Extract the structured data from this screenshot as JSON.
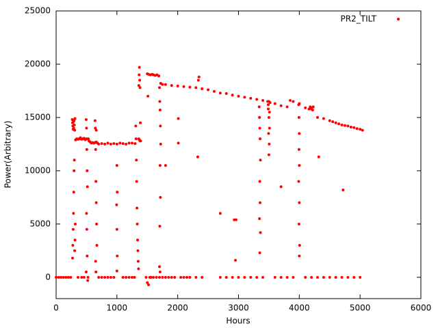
{
  "chart_data": {
    "type": "scatter",
    "xlabel": "Hours",
    "ylabel": "Power(Arbitrary)",
    "xlim": [
      0,
      6000
    ],
    "xticks": [
      0,
      1000,
      2000,
      3000,
      4000,
      5000,
      6000
    ],
    "ylim": [
      -2000,
      25000
    ],
    "yticks": [
      0,
      5000,
      10000,
      15000,
      20000,
      25000
    ],
    "legend": "top right",
    "x": [
      0,
      40,
      80,
      120,
      160,
      200,
      240,
      360,
      420,
      460,
      265,
      270,
      275,
      280,
      285,
      290,
      295,
      300,
      305,
      310,
      270,
      275,
      280,
      285,
      290,
      295,
      300,
      305,
      310,
      315,
      320,
      340,
      360,
      380,
      400,
      420,
      440,
      460,
      480,
      500,
      495,
      500,
      505,
      510,
      515,
      500,
      505,
      510,
      495,
      520,
      525,
      530,
      540,
      560,
      580,
      600,
      620,
      640,
      660,
      680,
      640,
      645,
      650,
      655,
      660,
      665,
      670,
      650,
      655,
      660,
      700,
      750,
      800,
      850,
      900,
      950,
      1000,
      1050,
      1100,
      1150,
      1000,
      1005,
      995,
      1000,
      1005,
      1000,
      700,
      750,
      800,
      850,
      900,
      950,
      1100,
      1150,
      1200,
      1250,
      1200,
      1250,
      1300,
      1290,
      1310,
      1315,
      1320,
      1325,
      1330,
      1335,
      1340,
      1345,
      1350,
      1355,
      1360,
      1365,
      1370,
      1375,
      1380,
      1385,
      1390,
      1360,
      1370,
      1380,
      1500,
      1520,
      1550,
      1580,
      1600,
      1630,
      1660,
      1690,
      1720,
      1750,
      1480,
      1500,
      1520,
      1540,
      1560,
      1600,
      1650,
      1700,
      1750,
      1510,
      1700,
      1705,
      1710,
      1715,
      1720,
      1710,
      1715,
      1705,
      1700,
      1710,
      1800,
      1900,
      2000,
      2100,
      2200,
      2300,
      2400,
      2500,
      2600,
      2700,
      2800,
      2900,
      3000,
      3100,
      3200,
      3300,
      3400,
      3500,
      3600,
      3700,
      3800,
      3850,
      3900,
      4000,
      4100,
      4200,
      4300,
      4400,
      4500,
      4600,
      4700,
      4800,
      4900,
      5000,
      5040,
      4650,
      4750,
      4850,
      4950,
      4550,
      3340,
      3345,
      3350,
      3355,
      3360,
      3350,
      3355,
      3345,
      3360,
      3350,
      3480,
      3490,
      3500,
      3510,
      3495,
      3505,
      3500,
      3490,
      3510,
      3520,
      3990,
      3995,
      4000,
      3995,
      4000,
      3990,
      4000,
      3995,
      4005,
      4000,
      1800,
      1850,
      1900,
      1950,
      2050,
      2100,
      2150,
      2200,
      2300,
      2400,
      2700,
      2800,
      2900,
      3000,
      3100,
      3200,
      3300,
      3400,
      3600,
      3700,
      3800,
      3900,
      4100,
      4200,
      4300,
      4400,
      4500,
      4600,
      4700,
      4800,
      4900,
      5000,
      2350,
      2340,
      2930,
      2960,
      2950,
      2010,
      2700,
      4720,
      3700,
      4320,
      4230,
      1800,
      2330,
      2010,
      4160,
      4180,
      4200,
      4220
    ],
    "series": [
      {
        "name": "PR2_TILT",
        "color": "#ff0000",
        "values": [
          0,
          0,
          0,
          0,
          0,
          0,
          0,
          0,
          0,
          0,
          14800,
          14500,
          14200,
          13900,
          14600,
          14000,
          14700,
          14300,
          13800,
          14900,
          1800,
          3000,
          4500,
          6000,
          8000,
          10000,
          11000,
          2500,
          3500,
          5000,
          12900,
          13000,
          12950,
          13000,
          13100,
          12950,
          13000,
          13050,
          12900,
          13000,
          14800,
          14000,
          12000,
          10000,
          8500,
          6000,
          4500,
          2000,
          500,
          -300,
          0,
          13000,
          12800,
          12700,
          12600,
          12650,
          12600,
          12650,
          12700,
          12600,
          14700,
          14000,
          12000,
          9000,
          7000,
          5000,
          3000,
          1500,
          500,
          13800,
          12500,
          12550,
          12500,
          12600,
          12500,
          12550,
          12500,
          12600,
          12550,
          12500,
          10500,
          8000,
          6800,
          4500,
          2000,
          600,
          0,
          0,
          0,
          0,
          0,
          0,
          0,
          0,
          0,
          0,
          12600,
          12600,
          12550,
          0,
          14200,
          13000,
          11000,
          9000,
          6500,
          5000,
          3500,
          2500,
          1500,
          800,
          18000,
          19000,
          19700,
          18500,
          17800,
          14500,
          12800,
          13000,
          12900,
          12800,
          19100,
          19050,
          19000,
          19050,
          19000,
          18950,
          19000,
          18900,
          18200,
          18100,
          0,
          -500,
          -700,
          0,
          0,
          0,
          0,
          0,
          0,
          17000,
          17800,
          16500,
          15700,
          14200,
          12500,
          10500,
          7500,
          4800,
          1000,
          500,
          18100,
          18000,
          17950,
          17900,
          17850,
          17800,
          17700,
          17600,
          17450,
          17300,
          17250,
          17100,
          17000,
          16900,
          16800,
          16700,
          16600,
          16500,
          16300,
          16100,
          16000,
          16600,
          16500,
          16300,
          15900,
          15800,
          15000,
          14900,
          14700,
          14500,
          14300,
          14200,
          14050,
          13900,
          13800,
          14400,
          14250,
          14100,
          13950,
          14600,
          16000,
          15000,
          14000,
          13000,
          11000,
          9000,
          7000,
          5500,
          4200,
          2300,
          16500,
          15800,
          15000,
          14000,
          13500,
          12500,
          11500,
          16200,
          15500,
          16400,
          16200,
          15000,
          13500,
          12000,
          10500,
          9000,
          7000,
          5000,
          3000,
          2000,
          0,
          0,
          0,
          0,
          0,
          0,
          0,
          0,
          0,
          0,
          0,
          0,
          0,
          0,
          0,
          0,
          0,
          0,
          0,
          0,
          0,
          0,
          0,
          0,
          0,
          0,
          0,
          0,
          0,
          0,
          0,
          0,
          18800,
          18500,
          5400,
          5400,
          1600,
          14900,
          6000,
          8200,
          8500,
          11300,
          16000,
          10500,
          11300,
          12600,
          15800,
          16000,
          15900,
          15700
        ]
      }
    ]
  }
}
